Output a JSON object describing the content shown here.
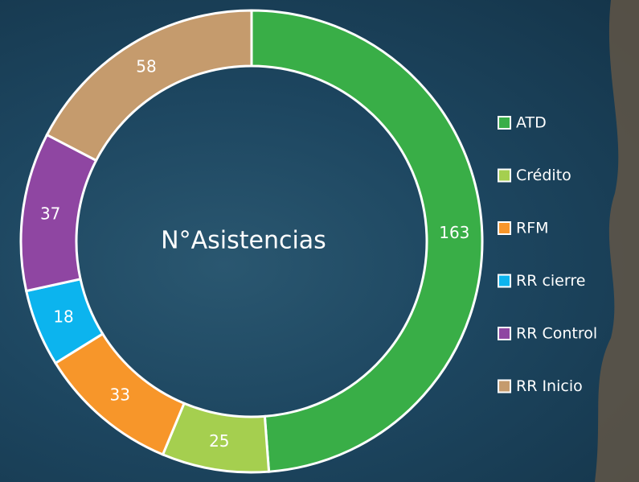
{
  "chart_data": {
    "type": "donut",
    "center_label": "N°Asistencias",
    "categories": [
      "ATD",
      "Crédito",
      "RFM",
      "RR cierre",
      "RR Control",
      "RR Inicio"
    ],
    "values": [
      163,
      25,
      33,
      18,
      37,
      58
    ],
    "colors": [
      "#39ae47",
      "#a5cf4f",
      "#f7962a",
      "#0cb4ee",
      "#8f46a2",
      "#c59b6d"
    ],
    "legend": "right"
  }
}
